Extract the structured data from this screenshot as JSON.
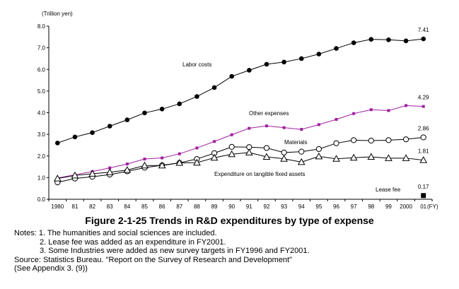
{
  "chart_data": {
    "type": "line",
    "title": "Figure 2-1-25  Trends in R&D expenditures by type of expense",
    "ylabel": "(Trillion yen)",
    "xlabel": "(FY)",
    "ylim": [
      0,
      8
    ],
    "yticks": [
      "0.0",
      "1.0",
      "2.0",
      "3.0",
      "4.0",
      "5.0",
      "6.0",
      "7.0",
      "8.0"
    ],
    "categories": [
      "1980",
      "81",
      "82",
      "83",
      "84",
      "85",
      "86",
      "87",
      "88",
      "89",
      "90",
      "91",
      "92",
      "93",
      "94",
      "95",
      "96",
      "97",
      "98",
      "99",
      "2000",
      "01"
    ],
    "series": [
      {
        "name": "Labor costs",
        "marker": "filled-circle",
        "color": "#000000",
        "values": [
          2.6,
          2.88,
          3.08,
          3.38,
          3.67,
          3.99,
          4.17,
          4.41,
          4.75,
          5.16,
          5.68,
          5.96,
          6.24,
          6.34,
          6.5,
          6.71,
          6.97,
          7.23,
          7.39,
          7.37,
          7.32,
          7.41
        ],
        "end_label": "7.41"
      },
      {
        "name": "Other expenses",
        "marker": "filled-square",
        "color": "#a020a0",
        "values": [
          0.98,
          1.13,
          1.28,
          1.45,
          1.63,
          1.86,
          1.91,
          2.1,
          2.37,
          2.67,
          2.98,
          3.28,
          3.39,
          3.31,
          3.23,
          3.45,
          3.69,
          3.96,
          4.14,
          4.1,
          4.33,
          4.29
        ],
        "end_label": "4.29"
      },
      {
        "name": "Materials",
        "marker": "open-circle",
        "color": "#000000",
        "values": [
          0.78,
          0.96,
          1.04,
          1.14,
          1.29,
          1.46,
          1.57,
          1.68,
          1.86,
          2.13,
          2.42,
          2.41,
          2.37,
          2.16,
          2.2,
          2.32,
          2.59,
          2.73,
          2.71,
          2.73,
          2.77,
          2.86
        ],
        "end_label": "2.86"
      },
      {
        "name": "Expenditure on tangible fixed assets",
        "marker": "open-triangle",
        "color": "#000000",
        "values": [
          0.96,
          1.1,
          1.18,
          1.25,
          1.35,
          1.56,
          1.56,
          1.68,
          1.69,
          1.92,
          2.08,
          2.16,
          1.96,
          1.87,
          1.72,
          1.98,
          1.87,
          1.92,
          1.96,
          1.9,
          1.9,
          1.81
        ],
        "end_label": "1.81"
      },
      {
        "name": "Lease fee",
        "marker": "filled-square-large",
        "color": "#000000",
        "values": [
          null,
          null,
          null,
          null,
          null,
          null,
          null,
          null,
          null,
          null,
          null,
          null,
          null,
          null,
          null,
          null,
          null,
          null,
          null,
          null,
          null,
          0.17
        ],
        "end_label": "0.17"
      }
    ],
    "grid": false
  },
  "notes": {
    "line1": "Notes: 1. The humanities and social sciences are included.",
    "line2": "2. Lease fee was added as an expenditure in FY2001.",
    "line3": "3. Some Industries were added as new survey targets in FY1996 and FY2001.",
    "line4": "Source: Statistics Bureau. \"Report on the Survey of Research and Development\"",
    "line5": "(See Appendix 3. (9))"
  }
}
